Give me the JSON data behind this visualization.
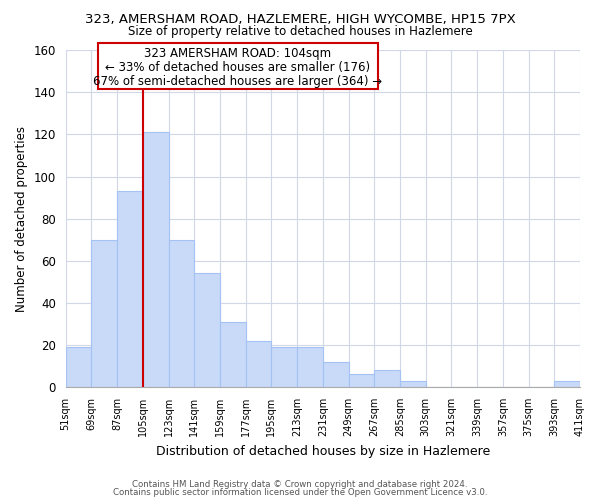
{
  "title_line1": "323, AMERSHAM ROAD, HAZLEMERE, HIGH WYCOMBE, HP15 7PX",
  "title_line2": "Size of property relative to detached houses in Hazlemere",
  "xlabel": "Distribution of detached houses by size in Hazlemere",
  "ylabel": "Number of detached properties",
  "bin_edges": [
    51,
    69,
    87,
    105,
    123,
    141,
    159,
    177,
    195,
    213,
    231,
    249,
    267,
    285,
    303,
    321,
    339,
    357,
    375,
    393,
    411
  ],
  "bar_heights": [
    19,
    70,
    93,
    121,
    70,
    54,
    31,
    22,
    19,
    19,
    12,
    6,
    8,
    3,
    0,
    0,
    0,
    0,
    0,
    3
  ],
  "bar_color": "#c9daf8",
  "bar_edge_color": "#a4c2f4",
  "property_line_x": 105,
  "ylim": [
    0,
    160
  ],
  "annotation_text_line1": "323 AMERSHAM ROAD: 104sqm",
  "annotation_text_line2": "← 33% of detached houses are smaller (176)",
  "annotation_text_line3": "67% of semi-detached houses are larger (364) →",
  "footer_line1": "Contains HM Land Registry data © Crown copyright and database right 2024.",
  "footer_line2": "Contains public sector information licensed under the Open Government Licence v3.0.",
  "bg_color": "#ffffff",
  "grid_color": "#d0d8e8",
  "property_line_color": "#cc0000",
  "annotation_box_color": "#ffffff",
  "annotation_box_edge_color": "#cc0000",
  "tick_labels": [
    "51sqm",
    "69sqm",
    "87sqm",
    "105sqm",
    "123sqm",
    "141sqm",
    "159sqm",
    "177sqm",
    "195sqm",
    "213sqm",
    "231sqm",
    "249sqm",
    "267sqm",
    "285sqm",
    "303sqm",
    "321sqm",
    "339sqm",
    "357sqm",
    "375sqm",
    "393sqm",
    "411sqm"
  ]
}
